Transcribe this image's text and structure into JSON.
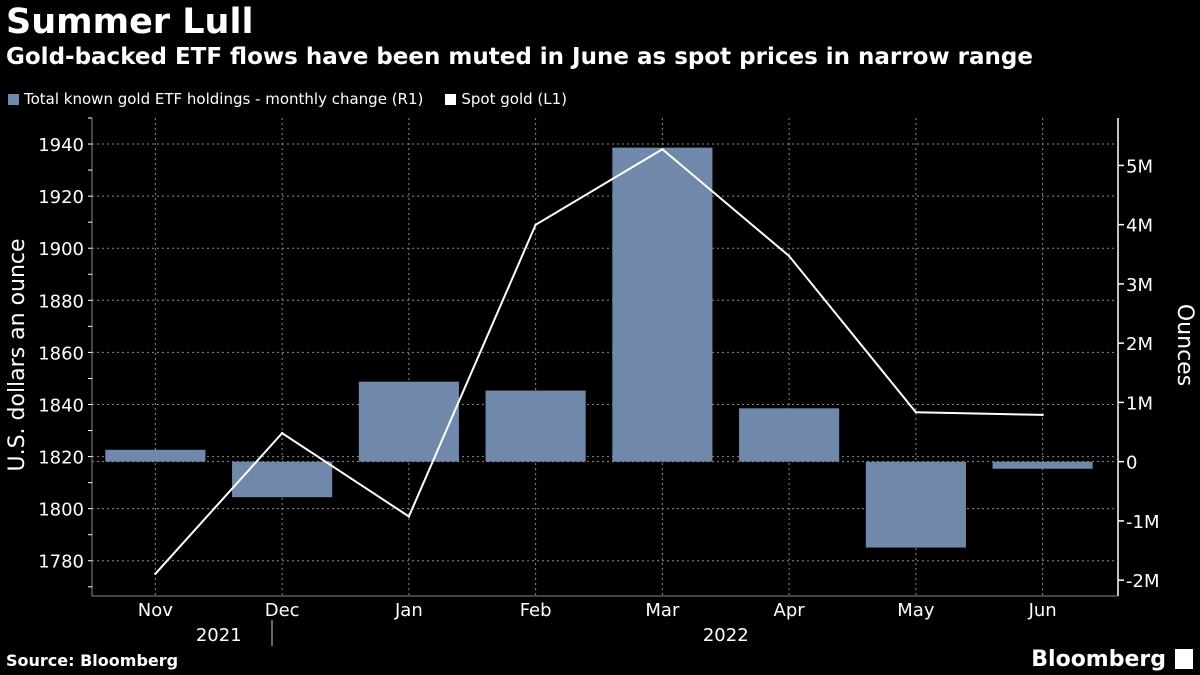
{
  "title": "Summer Lull",
  "subtitle": "Gold-backed ETF flows have been muted in June as spot prices in narrow range",
  "source": "Source: Bloomberg",
  "brand": "Bloomberg",
  "colors": {
    "bar": "#7089ab",
    "line": "#ffffff",
    "grid": "#8a8a8a",
    "background": "#000000"
  },
  "legend": [
    {
      "label": "Total known gold ETF holdings - monthly change (R1)",
      "color": "#7089ab"
    },
    {
      "label": "Spot gold (L1)",
      "color": "#ffffff"
    }
  ],
  "chart_data": {
    "type": "bar",
    "categories": [
      "Nov",
      "Dec",
      "Jan",
      "Feb",
      "Mar",
      "Apr",
      "May",
      "Jun"
    ],
    "year_labels": [
      {
        "label": "2021",
        "categories": [
          "Nov",
          "Dec"
        ]
      },
      {
        "label": "2022",
        "categories": [
          "Jan",
          "Feb",
          "Mar",
          "Apr",
          "May",
          "Jun"
        ]
      }
    ],
    "series": [
      {
        "name": "Total known gold ETF holdings - monthly change (R1)",
        "type": "bar",
        "axis": "right",
        "values": [
          200000,
          -600000,
          1350000,
          1200000,
          5300000,
          900000,
          -1450000,
          -120000
        ]
      },
      {
        "name": "Spot gold (L1)",
        "type": "line",
        "axis": "left",
        "values": [
          1775,
          1829,
          1797,
          1909,
          1938,
          1897,
          1837,
          1836
        ]
      }
    ],
    "left_axis": {
      "label": "U.S. dollars an ounce",
      "ylim": [
        1768,
        1950
      ],
      "ticks": [
        1780,
        1800,
        1820,
        1840,
        1860,
        1880,
        1900,
        1920,
        1940
      ]
    },
    "right_axis": {
      "label": "Ounces",
      "ylim": [
        -2200000,
        5800000
      ],
      "ticks": [
        -2000000,
        -1000000,
        0,
        1000000,
        2000000,
        3000000,
        4000000,
        5000000
      ],
      "tick_labels": [
        "-2M",
        "-1M",
        "0",
        "1M",
        "2M",
        "3M",
        "4M",
        "5M"
      ]
    },
    "grid": true
  }
}
